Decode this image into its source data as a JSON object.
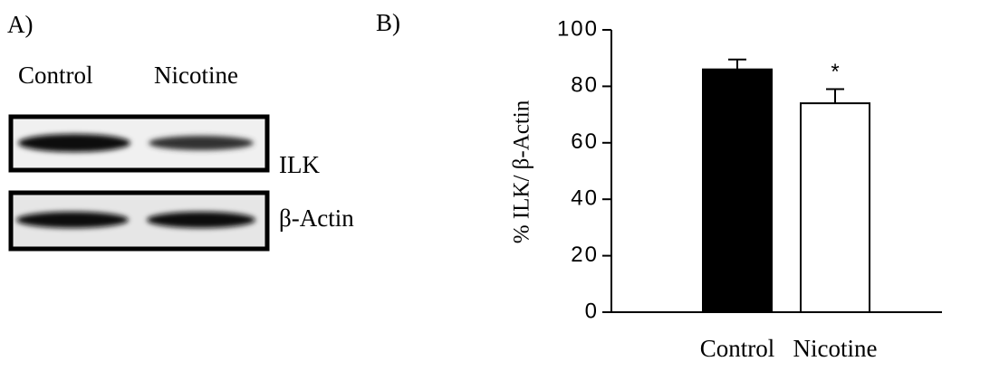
{
  "panel_a": {
    "label": "A)",
    "lanes": [
      "Control",
      "Nicotine"
    ],
    "proteins": [
      "ILK",
      "β-Actin"
    ]
  },
  "chart_data": {
    "type": "bar",
    "panel_label": "B)",
    "ylabel": "% ILK/ β-Actin",
    "categories": [
      "Control",
      "Nicotine"
    ],
    "values": [
      86,
      74
    ],
    "errors": [
      3.5,
      5
    ],
    "colors": [
      "#000000",
      "#ffffff"
    ],
    "annotations": [
      {
        "text": "*",
        "category_index": 1
      }
    ],
    "ylim": [
      0,
      100
    ],
    "yticks": [
      0,
      20,
      40,
      60,
      80,
      100
    ],
    "grid": false
  }
}
